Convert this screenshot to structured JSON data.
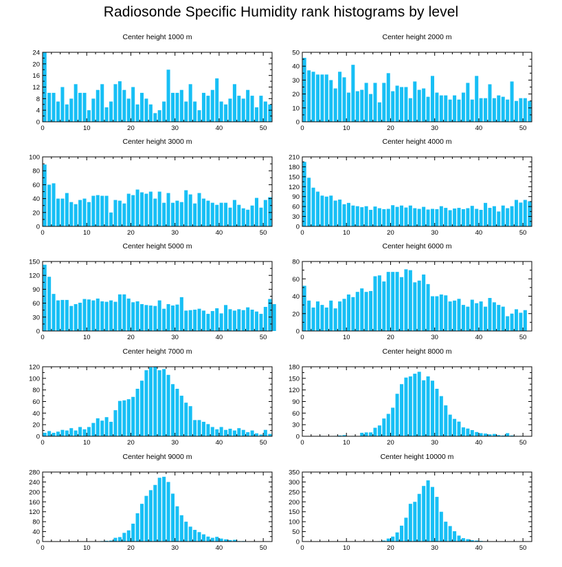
{
  "title": "Radiosonde Specific Humidity rank histograms by level",
  "colors": {
    "bar": "#17bff5",
    "bar_edge": "#ffffff",
    "axis": "#000000",
    "text": "#000000"
  },
  "chart_data": [
    {
      "type": "bar",
      "title": "Center height 1000 m",
      "xlim": [
        0,
        52
      ],
      "ylim": [
        0,
        24
      ],
      "xticks": [
        0,
        10,
        20,
        30,
        40,
        50
      ],
      "yticks": [
        0,
        4,
        8,
        12,
        16,
        20,
        24
      ],
      "values": [
        24,
        10,
        10,
        7,
        12,
        6,
        8,
        13,
        10,
        10,
        4,
        8,
        11,
        13,
        5,
        7,
        13,
        14,
        11,
        8,
        12,
        6,
        10,
        8,
        6,
        3,
        4,
        7,
        18,
        10,
        10,
        11,
        7,
        13,
        7,
        4,
        10,
        9,
        11,
        15,
        7,
        6,
        8,
        13,
        9,
        8,
        11,
        9,
        5,
        9,
        7,
        6
      ]
    },
    {
      "type": "bar",
      "title": "Center height 2000 m",
      "xlim": [
        0,
        52
      ],
      "ylim": [
        0,
        50
      ],
      "xticks": [
        0,
        10,
        20,
        30,
        40,
        50
      ],
      "yticks": [
        0,
        10,
        20,
        30,
        40,
        50
      ],
      "values": [
        46,
        37,
        36,
        34,
        34,
        34,
        30,
        24,
        36,
        32,
        21,
        41,
        22,
        23,
        28,
        20,
        28,
        14,
        28,
        35,
        22,
        26,
        25,
        25,
        17,
        29,
        23,
        24,
        18,
        33,
        21,
        19,
        19,
        16,
        19,
        16,
        21,
        28,
        16,
        33,
        17,
        17,
        27,
        17,
        19,
        18,
        16,
        29,
        15,
        17,
        17,
        15
      ]
    },
    {
      "type": "bar",
      "title": "Center height 3000 m",
      "xlim": [
        0,
        52
      ],
      "ylim": [
        0,
        100
      ],
      "xticks": [
        0,
        10,
        20,
        30,
        40,
        50
      ],
      "yticks": [
        0,
        20,
        40,
        60,
        80,
        100
      ],
      "values": [
        89,
        60,
        62,
        40,
        40,
        48,
        35,
        32,
        38,
        40,
        35,
        44,
        45,
        44,
        44,
        20,
        38,
        37,
        33,
        47,
        45,
        53,
        49,
        47,
        50,
        40,
        50,
        34,
        48,
        34,
        37,
        35,
        52,
        46,
        33,
        48,
        40,
        37,
        34,
        31,
        34,
        34,
        27,
        38,
        31,
        26,
        24,
        30,
        41,
        27,
        38,
        42
      ]
    },
    {
      "type": "bar",
      "title": "Center height 4000 m",
      "xlim": [
        0,
        52
      ],
      "ylim": [
        0,
        210
      ],
      "xticks": [
        0,
        10,
        20,
        30,
        40,
        50
      ],
      "yticks": [
        0,
        30,
        60,
        90,
        120,
        150,
        180,
        210
      ],
      "values": [
        195,
        147,
        117,
        105,
        93,
        90,
        93,
        78,
        81,
        67,
        71,
        63,
        61,
        58,
        61,
        50,
        60,
        55,
        52,
        53,
        64,
        59,
        63,
        57,
        63,
        55,
        53,
        59,
        51,
        53,
        52,
        61,
        56,
        49,
        54,
        56,
        52,
        55,
        62,
        53,
        50,
        71,
        56,
        61,
        45,
        63,
        55,
        61,
        80,
        72,
        80,
        76
      ]
    },
    {
      "type": "bar",
      "title": "Center height 5000 m",
      "xlim": [
        0,
        52
      ],
      "ylim": [
        0,
        150
      ],
      "xticks": [
        0,
        10,
        20,
        30,
        40,
        50
      ],
      "yticks": [
        0,
        30,
        60,
        90,
        120,
        150
      ],
      "values": [
        143,
        117,
        80,
        66,
        67,
        67,
        54,
        58,
        61,
        69,
        68,
        66,
        70,
        64,
        63,
        66,
        63,
        79,
        79,
        70,
        62,
        64,
        58,
        56,
        55,
        54,
        66,
        48,
        58,
        55,
        57,
        73,
        44,
        45,
        46,
        48,
        44,
        37,
        43,
        49,
        38,
        56,
        47,
        44,
        47,
        45,
        51,
        46,
        42,
        37,
        52,
        69,
        58
      ]
    },
    {
      "type": "bar",
      "title": "Center height 6000 m",
      "xlim": [
        0,
        52
      ],
      "ylim": [
        0,
        80
      ],
      "xticks": [
        0,
        10,
        20,
        30,
        40,
        50
      ],
      "yticks": [
        0,
        20,
        40,
        60,
        80
      ],
      "values": [
        52,
        35,
        27,
        34,
        30,
        27,
        35,
        26,
        34,
        37,
        42,
        39,
        45,
        49,
        45,
        46,
        63,
        64,
        57,
        68,
        68,
        68,
        62,
        71,
        70,
        56,
        58,
        65,
        54,
        40,
        40,
        42,
        41,
        34,
        35,
        37,
        30,
        28,
        36,
        32,
        34,
        28,
        38,
        33,
        30,
        28,
        17,
        20,
        25,
        21,
        24
      ]
    },
    {
      "type": "bar",
      "title": "Center height 7000 m",
      "xlim": [
        0,
        52
      ],
      "ylim": [
        0,
        120
      ],
      "xticks": [
        0,
        10,
        20,
        30,
        40,
        50
      ],
      "yticks": [
        0,
        20,
        40,
        60,
        80,
        100,
        120
      ],
      "values": [
        6,
        9,
        6,
        8,
        11,
        10,
        14,
        10,
        16,
        12,
        16,
        23,
        31,
        27,
        33,
        25,
        45,
        61,
        62,
        64,
        68,
        82,
        96,
        114,
        119,
        123,
        114,
        116,
        106,
        90,
        82,
        70,
        58,
        52,
        28,
        28,
        25,
        21,
        16,
        12,
        16,
        11,
        13,
        10,
        14,
        11,
        7,
        10,
        5,
        3,
        11,
        4
      ]
    },
    {
      "type": "bar",
      "title": "Center height 8000 m",
      "xlim": [
        0,
        52
      ],
      "ylim": [
        0,
        180
      ],
      "xticks": [
        0,
        10,
        20,
        30,
        40,
        50
      ],
      "yticks": [
        0,
        30,
        60,
        90,
        120,
        150,
        180
      ],
      "values": [
        0,
        0,
        0,
        0,
        1,
        0,
        0,
        1,
        2,
        3,
        0,
        1,
        0,
        9,
        10,
        10,
        22,
        28,
        46,
        58,
        74,
        110,
        135,
        152,
        155,
        162,
        167,
        145,
        155,
        144,
        123,
        104,
        80,
        56,
        45,
        38,
        23,
        20,
        16,
        11,
        8,
        7,
        5,
        6,
        3,
        2,
        8,
        2,
        1,
        1,
        0,
        0
      ]
    },
    {
      "type": "bar",
      "title": "Center height 9000 m",
      "xlim": [
        0,
        52
      ],
      "ylim": [
        0,
        280
      ],
      "xticks": [
        0,
        10,
        20,
        30,
        40,
        50
      ],
      "yticks": [
        0,
        40,
        80,
        120,
        160,
        200,
        240,
        280
      ],
      "values": [
        0,
        0,
        0,
        0,
        0,
        0,
        0,
        0,
        0,
        0,
        1,
        1,
        1,
        2,
        3,
        4,
        15,
        18,
        35,
        45,
        72,
        114,
        152,
        184,
        207,
        228,
        257,
        261,
        240,
        193,
        142,
        106,
        80,
        60,
        47,
        38,
        29,
        20,
        15,
        19,
        12,
        9,
        6,
        7,
        2,
        2,
        0,
        0,
        0,
        0,
        0,
        0
      ]
    },
    {
      "type": "bar",
      "title": "Center height 10000 m",
      "xlim": [
        0,
        52
      ],
      "ylim": [
        0,
        350
      ],
      "xticks": [
        0,
        10,
        20,
        30,
        40,
        50
      ],
      "yticks": [
        0,
        50,
        100,
        150,
        200,
        250,
        300,
        350
      ],
      "values": [
        0,
        0,
        0,
        0,
        0,
        0,
        0,
        0,
        0,
        0,
        0,
        0,
        0,
        0,
        0,
        0,
        0,
        2,
        5,
        15,
        25,
        46,
        80,
        120,
        190,
        200,
        240,
        280,
        308,
        275,
        225,
        150,
        100,
        78,
        52,
        30,
        17,
        12,
        7,
        5,
        3,
        2,
        1,
        1,
        1,
        0,
        0,
        0,
        0,
        0,
        0,
        0
      ]
    }
  ]
}
